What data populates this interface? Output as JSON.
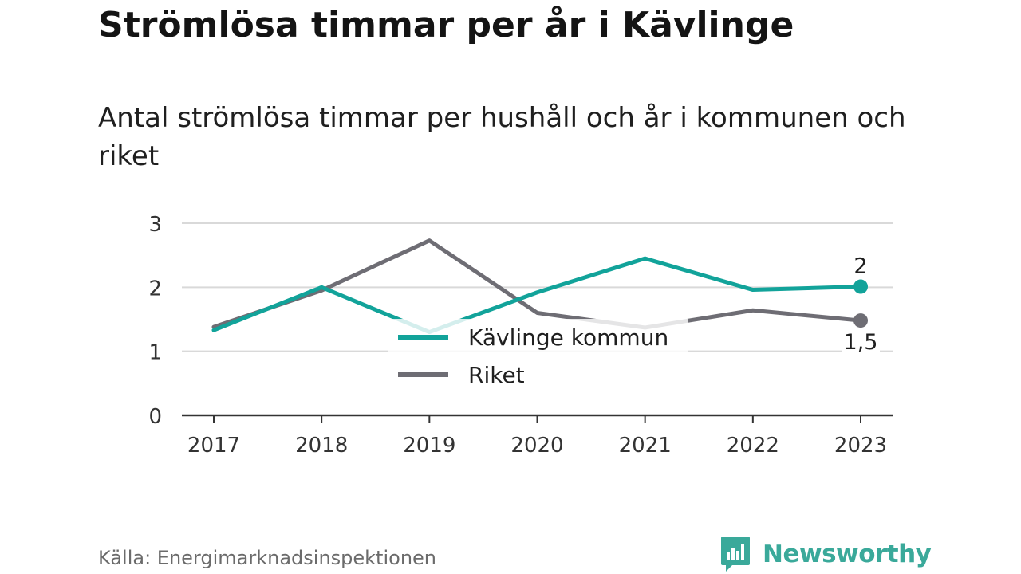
{
  "title": "Strömlösa timmar per år i Kävlinge",
  "subtitle": "Antal strömlösa timmar per hushåll och år i kommunen och riket",
  "source": "Källa: Energimarknadsinspektionen",
  "brand": {
    "name": "Newsworthy",
    "icon": "bar-chart-bubble-icon",
    "color": "#3aa99a"
  },
  "chart_data": {
    "type": "line",
    "x": [
      "2017",
      "2018",
      "2019",
      "2020",
      "2021",
      "2022",
      "2023"
    ],
    "ylim": [
      0,
      3
    ],
    "yticks": [
      "0",
      "1",
      "2",
      "3"
    ],
    "grid": true,
    "legend_position": "center",
    "series": [
      {
        "name": "Kävlinge kommun",
        "color": "#12a39a",
        "values": [
          1.33,
          2.0,
          1.3,
          1.92,
          2.45,
          1.96,
          2.01
        ],
        "end_label": "2"
      },
      {
        "name": "Riket",
        "color": "#6e6d74",
        "values": [
          1.38,
          1.95,
          2.73,
          1.6,
          1.37,
          1.64,
          1.48
        ],
        "end_label": "1,5"
      }
    ]
  }
}
